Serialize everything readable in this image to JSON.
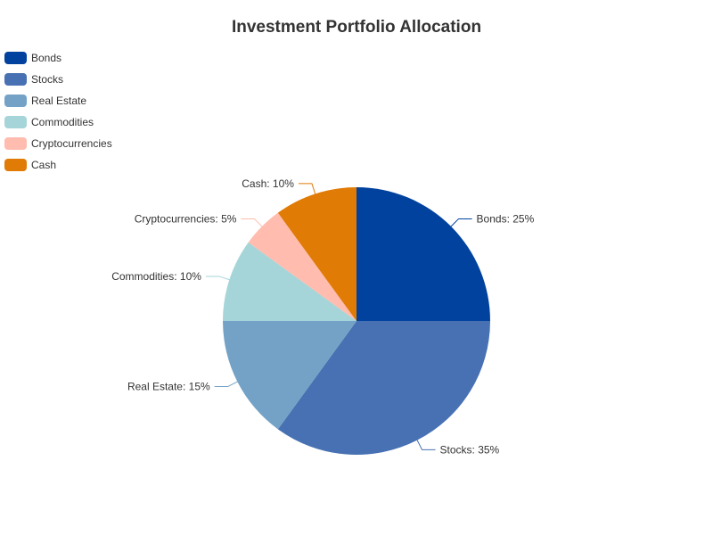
{
  "chart_data": {
    "type": "pie",
    "title": "Investment Portfolio Allocation",
    "legend_position": "top-left",
    "slices": [
      {
        "name": "Bonds",
        "value": 25,
        "label": "Bonds: 25%",
        "color": "#00429d"
      },
      {
        "name": "Stocks",
        "value": 35,
        "label": "Stocks: 35%",
        "color": "#4771b2"
      },
      {
        "name": "Real Estate",
        "value": 15,
        "label": "Real Estate: 15%",
        "color": "#73a2c6"
      },
      {
        "name": "Commodities",
        "value": 10,
        "label": "Commodities: 10%",
        "color": "#a5d5d8"
      },
      {
        "name": "Cryptocurrencies",
        "value": 5,
        "label": "Cryptocurrencies: 5%",
        "color": "#ffbcaf"
      },
      {
        "name": "Cash",
        "value": 10,
        "label": "Cash: 10%",
        "color": "#e07b06"
      }
    ]
  }
}
